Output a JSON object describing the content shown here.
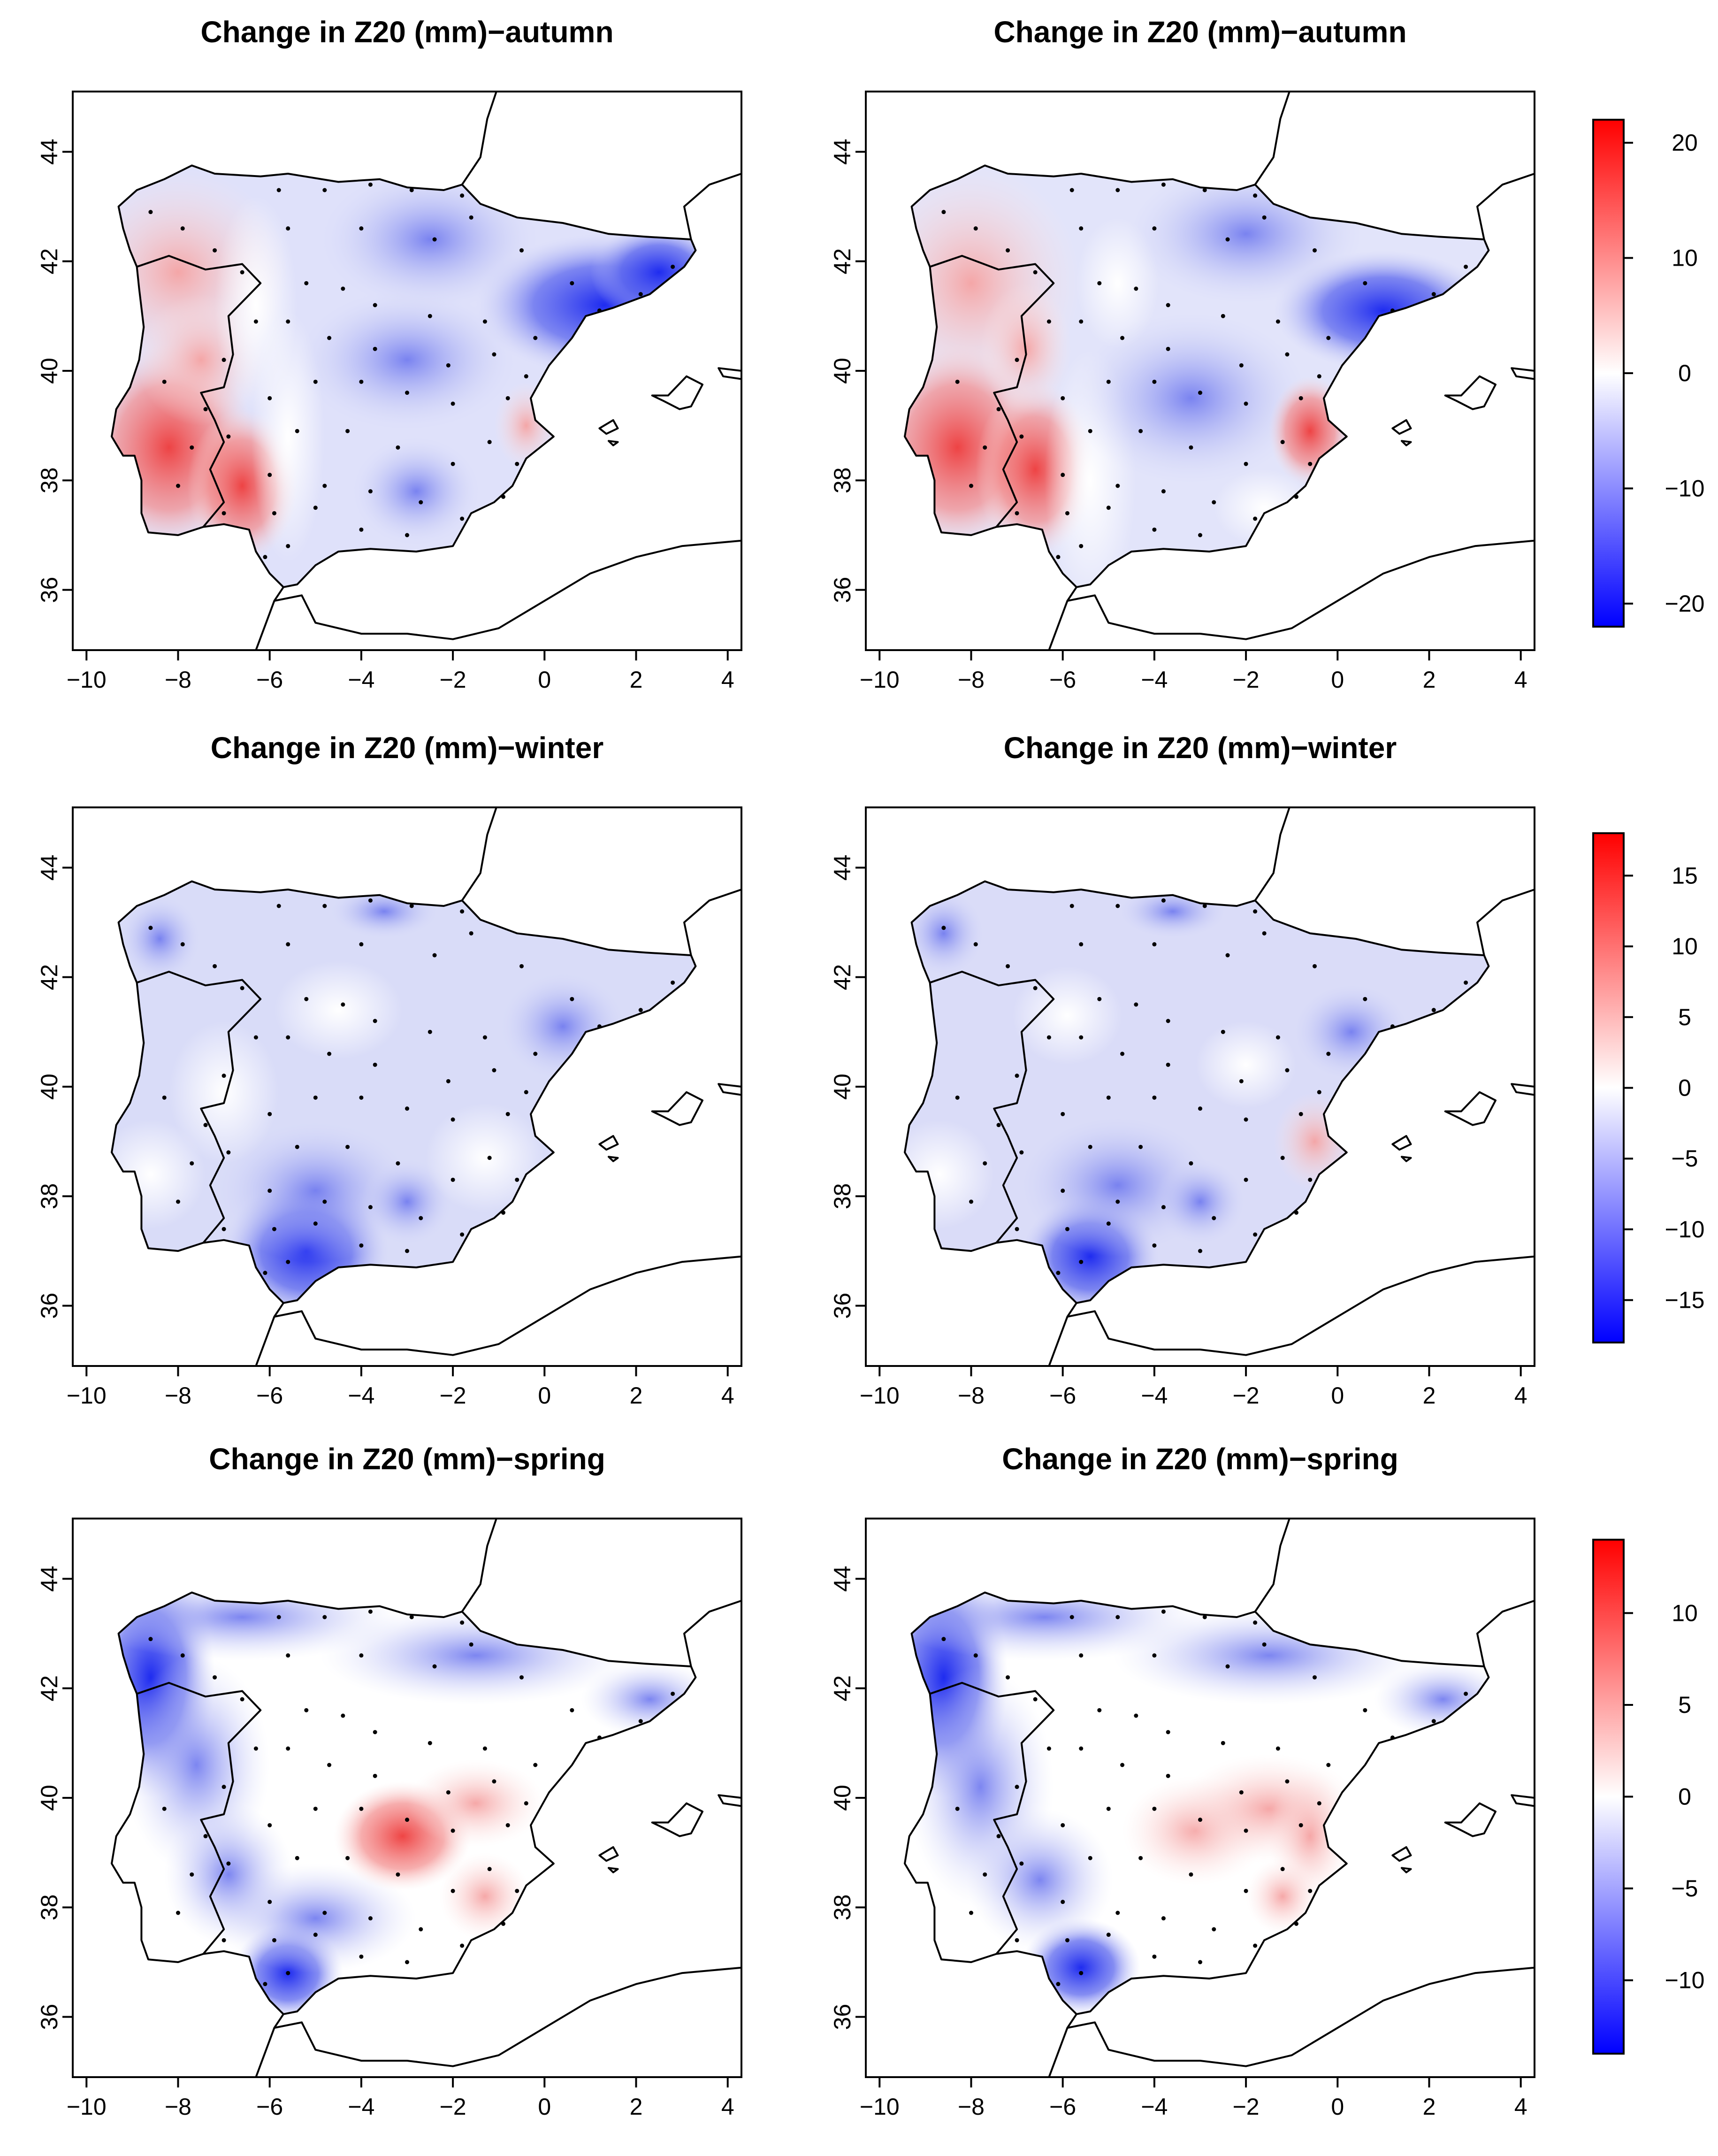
{
  "colors": {
    "positive": "#ff0000",
    "neutral": "#ffffff",
    "negative": "#0000ff"
  },
  "axes": {
    "x_ticks": [
      "−10",
      "−8",
      "−6",
      "−4",
      "−2",
      "0",
      "2",
      "4"
    ],
    "y_ticks": [
      "36",
      "38",
      "40",
      "42",
      "44"
    ]
  },
  "panels": [
    {
      "title": "Change in Z20 (mm)−autumn",
      "row": 0,
      "col": 0
    },
    {
      "title": "Change in Z20 (mm)−autumn",
      "row": 0,
      "col": 1
    },
    {
      "title": "Change in Z20 (mm)−winter",
      "row": 1,
      "col": 0
    },
    {
      "title": "Change in Z20 (mm)−winter",
      "row": 1,
      "col": 1
    },
    {
      "title": "Change in Z20 (mm)−spring",
      "row": 2,
      "col": 0
    },
    {
      "title": "Change in Z20 (mm)−spring",
      "row": 2,
      "col": 1
    }
  ],
  "colorbars": [
    {
      "row": 0,
      "min": -22,
      "max": 22,
      "ticks": [
        "20",
        "10",
        "0",
        "−10",
        "−20"
      ],
      "tick_values": [
        20,
        10,
        0,
        -10,
        -20
      ]
    },
    {
      "row": 1,
      "min": -18,
      "max": 18,
      "ticks": [
        "15",
        "10",
        "5",
        "0",
        "−5",
        "−10",
        "−15"
      ],
      "tick_values": [
        15,
        10,
        5,
        0,
        -5,
        -10,
        -15
      ]
    },
    {
      "row": 2,
      "min": -14,
      "max": 14,
      "ticks": [
        "10",
        "5",
        "0",
        "−5",
        "−10"
      ],
      "tick_values": [
        10,
        5,
        0,
        -5,
        -10
      ]
    }
  ]
}
